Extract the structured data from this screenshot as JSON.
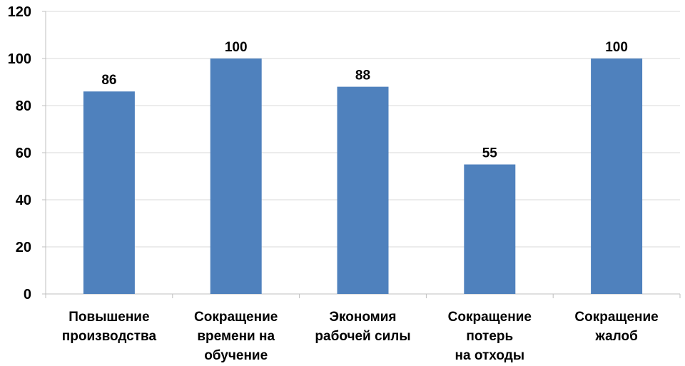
{
  "chart_data": {
    "type": "bar",
    "categories": [
      [
        "Повышение",
        "производства"
      ],
      [
        "Сокращение",
        "времени на",
        "обучение"
      ],
      [
        "Экономия",
        "рабочей силы"
      ],
      [
        "Сокращение",
        "потерь",
        "на отходы"
      ],
      [
        "Сокращение",
        "жалоб"
      ]
    ],
    "values": [
      86,
      100,
      88,
      55,
      100
    ],
    "data_labels": [
      "86",
      "100",
      "88",
      "55",
      "100"
    ],
    "ylim": [
      0,
      120
    ],
    "yticks": [
      0,
      20,
      40,
      60,
      80,
      100,
      120
    ],
    "grid": true,
    "bar_color": "#4F81BD",
    "grid_color": "#D9D9D9",
    "axis_color": "#BFBFBF"
  }
}
